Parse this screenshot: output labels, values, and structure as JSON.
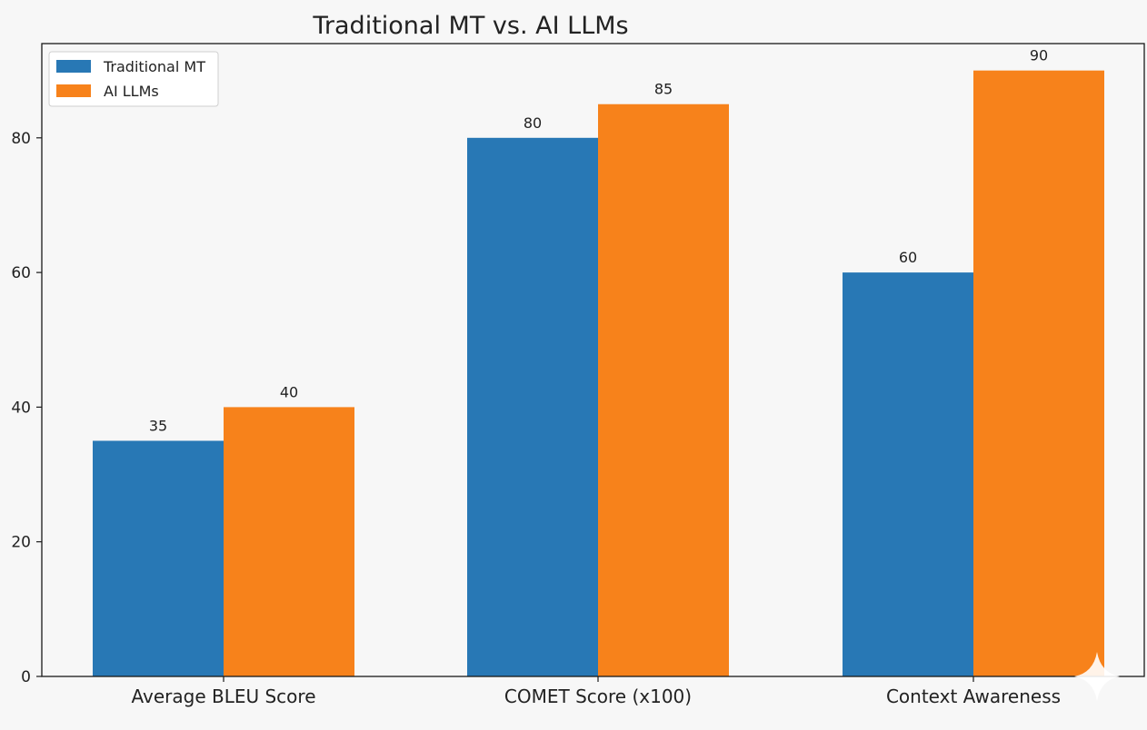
{
  "chart_data": {
    "type": "bar",
    "title": "Traditional MT vs. AI LLMs",
    "xlabel": "",
    "ylabel": "",
    "categories": [
      "Average BLEU Score",
      "COMET Score (x100)",
      "Context Awareness"
    ],
    "series": [
      {
        "name": "Traditional MT",
        "color": "#2878b5",
        "values": [
          35,
          80,
          60
        ]
      },
      {
        "name": "AI LLMs",
        "color": "#f7821b",
        "values": [
          40,
          85,
          90
        ]
      }
    ],
    "ylim": [
      0,
      94
    ],
    "yticks": [
      0,
      20,
      40,
      60,
      80
    ],
    "grid": false,
    "legend_position": "top-left"
  }
}
